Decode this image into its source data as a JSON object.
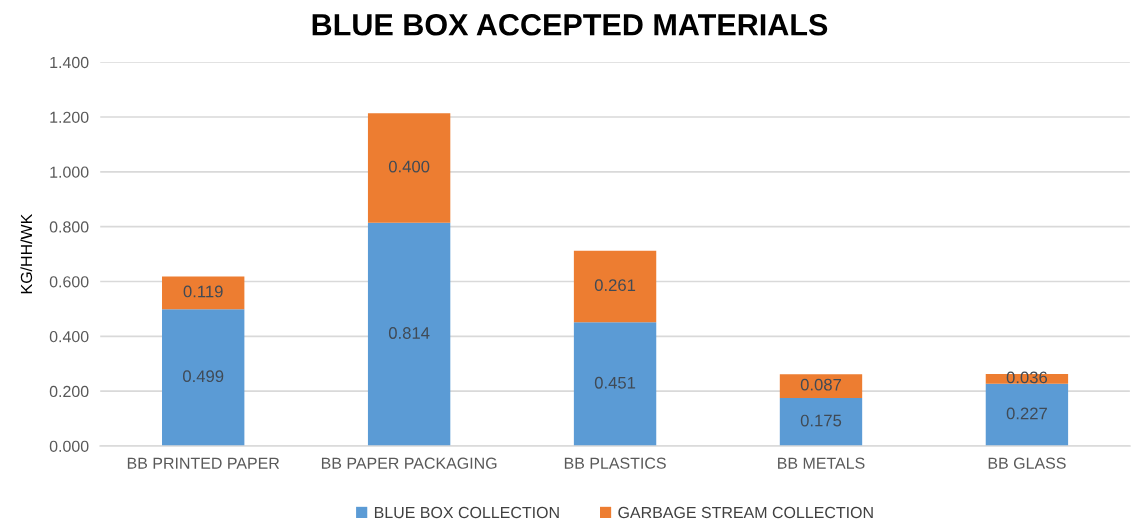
{
  "chart_data": {
    "type": "bar",
    "title": "BLUE BOX ACCEPTED MATERIALS",
    "ylabel": "KG/HH/WK",
    "categories": [
      "BB PRINTED PAPER",
      "BB PAPER PACKAGING",
      "BB PLASTICS",
      "BB METALS",
      "BB GLASS"
    ],
    "stacked": true,
    "series": [
      {
        "name": "BLUE BOX COLLECTION",
        "color": "#5b9bd5",
        "values": [
          0.499,
          0.814,
          0.451,
          0.175,
          0.227
        ],
        "value_labels": [
          "0.499",
          "0.814",
          "0.451",
          "0.175",
          "0.227"
        ]
      },
      {
        "name": "GARBAGE STREAM COLLECTION",
        "color": "#ed7d31",
        "values": [
          0.119,
          0.4,
          0.261,
          0.087,
          0.036
        ],
        "value_labels": [
          "0.119",
          "0.400",
          "0.261",
          "0.087",
          "0.036"
        ]
      }
    ],
    "ylim": [
      0,
      1.4
    ],
    "yticks": [
      {
        "value": 0,
        "label": "0.000"
      },
      {
        "value": 0.2,
        "label": "0.200"
      },
      {
        "value": 0.4,
        "label": "0.400"
      },
      {
        "value": 0.6,
        "label": "0.600"
      },
      {
        "value": 0.8,
        "label": "0.800"
      },
      {
        "value": 1.0,
        "label": "1.000"
      },
      {
        "value": 1.2,
        "label": "1.200"
      },
      {
        "value": 1.4,
        "label": "1.400"
      }
    ],
    "grid": "y",
    "legend": "bottom"
  }
}
